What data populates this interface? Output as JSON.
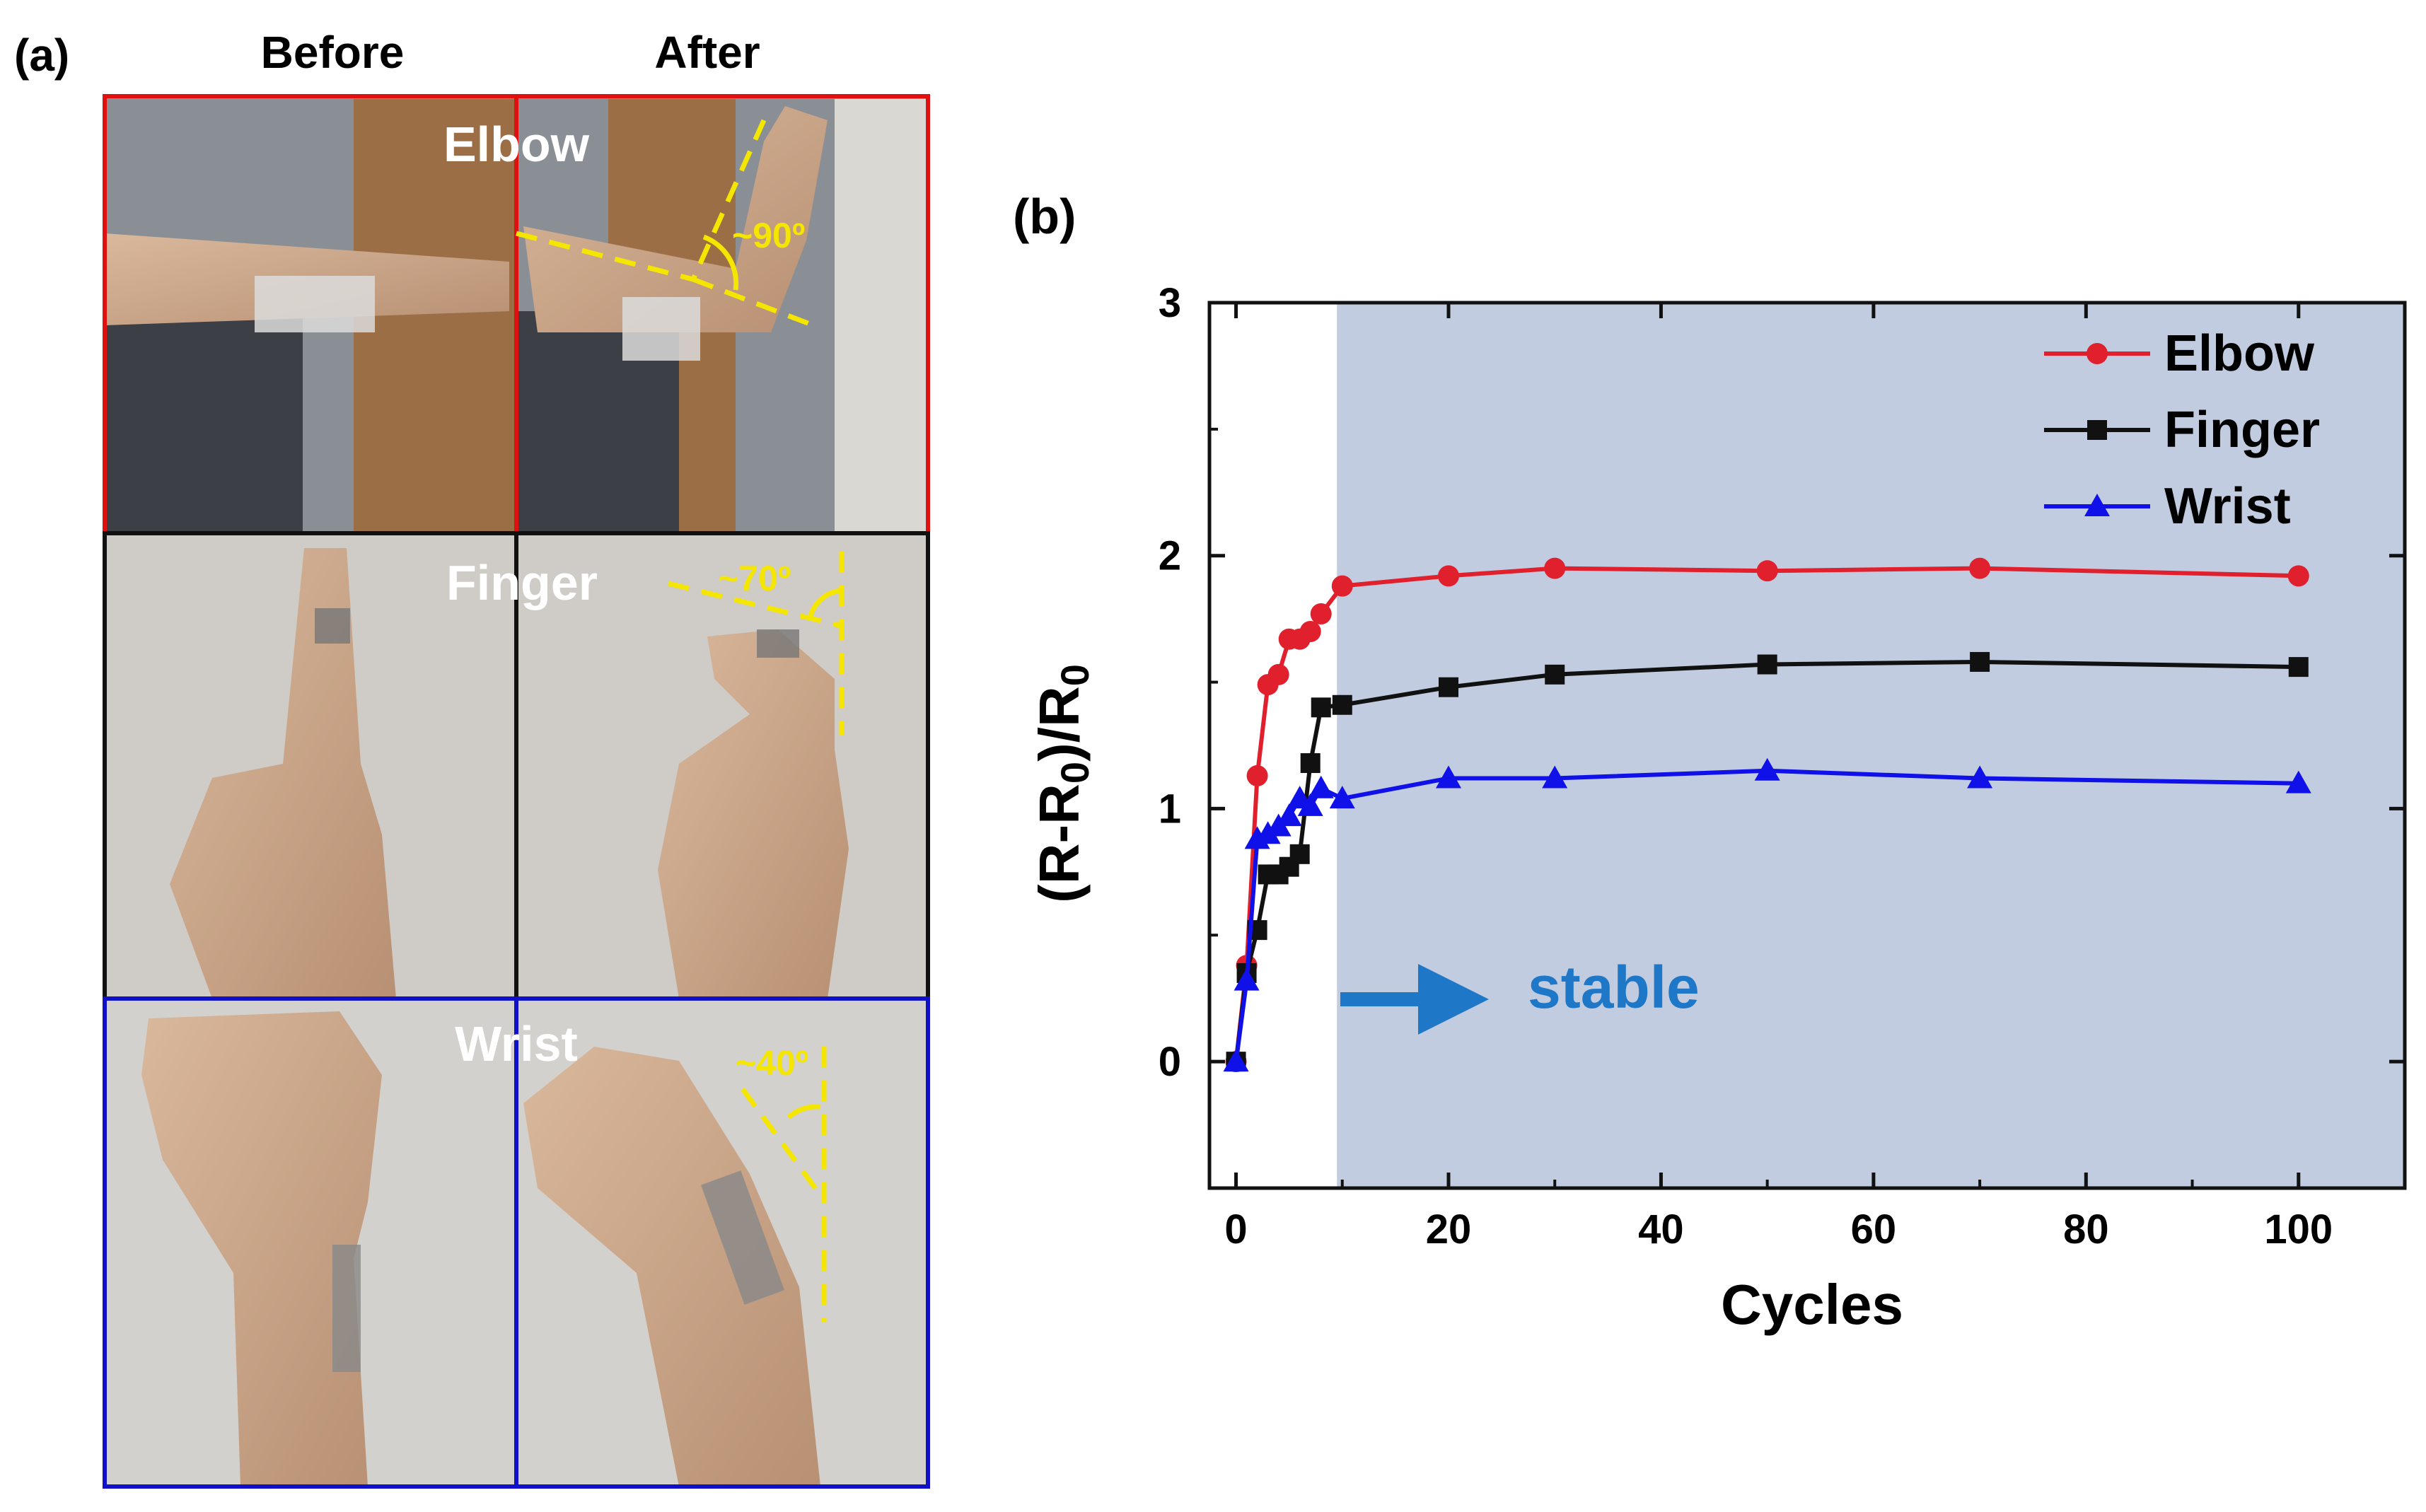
{
  "panel_a": {
    "label": "(a)",
    "col_before": "Before",
    "col_after": "After",
    "rows": [
      {
        "name": "Elbow",
        "angle": "~90º",
        "frame_color": "#e01010"
      },
      {
        "name": "Finger",
        "angle": "~70º",
        "frame_color": "#111111"
      },
      {
        "name": "Wrist",
        "angle": "~40º",
        "frame_color": "#1010c8"
      }
    ],
    "annotation_color": "#f5e600"
  },
  "panel_b": {
    "label": "(b)",
    "stable_label": "stable",
    "stable_color": "#1f77c8",
    "shaded_color": "#c1cce0",
    "shaded_from_x": 9.5
  },
  "chart_data": {
    "type": "line",
    "xlabel": "Cycles",
    "ylabel": "(R-R0)/R0",
    "xlim": [
      -2.5,
      110
    ],
    "ylim": [
      -0.5,
      3
    ],
    "xticks": [
      0,
      20,
      40,
      60,
      80,
      100
    ],
    "yticks": [
      0,
      1,
      2,
      3
    ],
    "legend_position": "top-right",
    "series": [
      {
        "name": "Elbow",
        "color": "#e0202c",
        "marker": "circle",
        "x": [
          0,
          1,
          2,
          3,
          4,
          5,
          6,
          7,
          8,
          10,
          20,
          30,
          50,
          70,
          100
        ],
        "y": [
          0,
          0.38,
          1.13,
          1.49,
          1.53,
          1.67,
          1.67,
          1.7,
          1.77,
          1.88,
          1.92,
          1.95,
          1.94,
          1.95,
          1.92
        ]
      },
      {
        "name": "Finger",
        "color": "#111111",
        "marker": "square",
        "x": [
          0,
          1,
          2,
          3,
          4,
          5,
          6,
          7,
          8,
          10,
          20,
          30,
          50,
          70,
          100
        ],
        "y": [
          0,
          0.35,
          0.52,
          0.74,
          0.74,
          0.77,
          0.82,
          1.18,
          1.4,
          1.41,
          1.48,
          1.53,
          1.57,
          1.58,
          1.56
        ]
      },
      {
        "name": "Wrist",
        "color": "#1010e8",
        "marker": "triangle",
        "x": [
          0,
          1,
          2,
          3,
          4,
          5,
          6,
          7,
          8,
          10,
          20,
          30,
          50,
          70,
          100
        ],
        "y": [
          0,
          0.32,
          0.88,
          0.9,
          0.93,
          0.97,
          1.04,
          1.01,
          1.08,
          1.04,
          1.12,
          1.12,
          1.15,
          1.12,
          1.1
        ]
      }
    ]
  }
}
